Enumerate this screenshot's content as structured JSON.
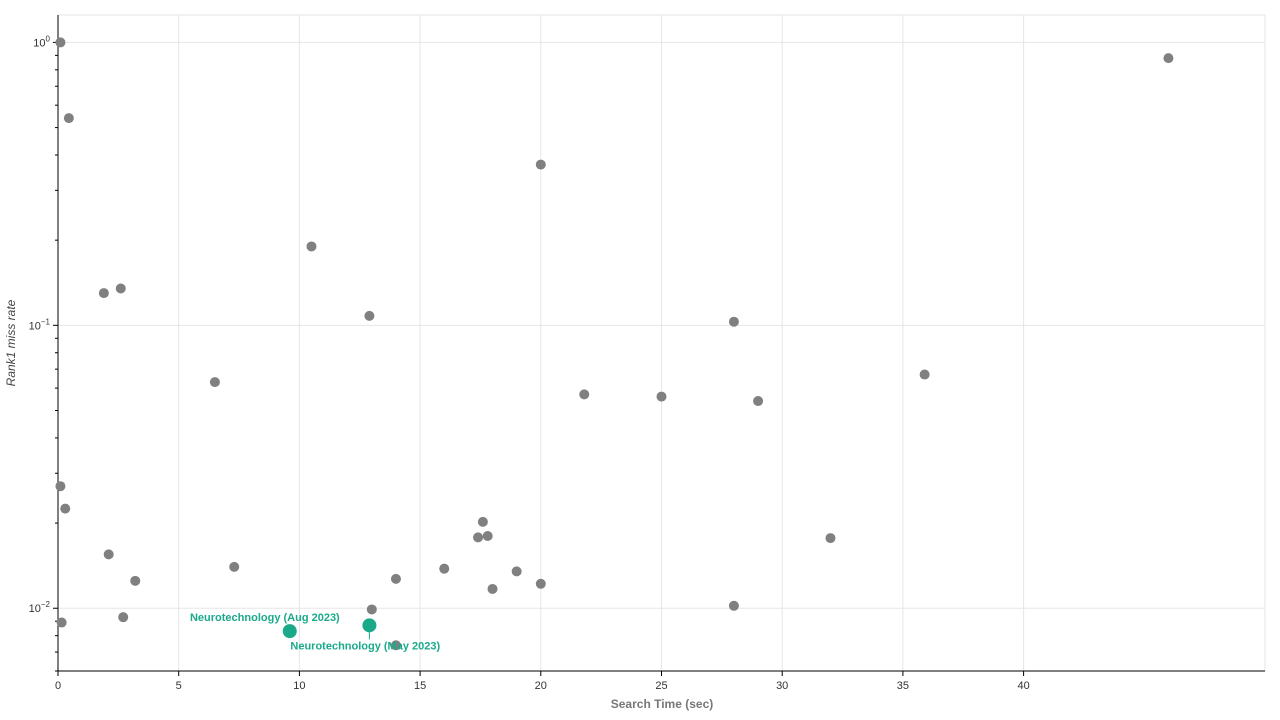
{
  "chart_data": {
    "type": "scatter",
    "title": "",
    "xlabel": "Search Time (sec)",
    "ylabel": "Rank1 miss rate",
    "x_scale": "linear",
    "y_scale": "log",
    "xlim": [
      0,
      50
    ],
    "ylim": [
      0.006,
      1.25
    ],
    "x_ticks": [
      0,
      5,
      10,
      15,
      20,
      25,
      30,
      35,
      40
    ],
    "x_tick_labels": [
      "0",
      "5",
      "10",
      "15",
      "20",
      "25",
      "30",
      "35",
      "40"
    ],
    "y_ticks": [
      0.01,
      0.1,
      1
    ],
    "y_tick_labels": [
      {
        "base": "10",
        "exp": "−2"
      },
      {
        "base": "10",
        "exp": "−1"
      },
      {
        "base": "10",
        "exp": "0"
      }
    ],
    "grid": true,
    "colors": {
      "default": "#808080",
      "highlight": "#1aaa8a",
      "grid": "#e6e6e6",
      "axis": "#000000"
    },
    "points": [
      {
        "x": 0.1,
        "y": 1.0
      },
      {
        "x": 0.45,
        "y": 0.54
      },
      {
        "x": 46.0,
        "y": 0.88
      },
      {
        "x": 20.0,
        "y": 0.37
      },
      {
        "x": 10.5,
        "y": 0.19
      },
      {
        "x": 1.9,
        "y": 0.13
      },
      {
        "x": 2.6,
        "y": 0.135
      },
      {
        "x": 12.9,
        "y": 0.108
      },
      {
        "x": 28.0,
        "y": 0.103
      },
      {
        "x": 6.5,
        "y": 0.063
      },
      {
        "x": 35.9,
        "y": 0.067
      },
      {
        "x": 21.8,
        "y": 0.057
      },
      {
        "x": 25.0,
        "y": 0.056
      },
      {
        "x": 29.0,
        "y": 0.054
      },
      {
        "x": 0.1,
        "y": 0.027
      },
      {
        "x": 0.3,
        "y": 0.0225
      },
      {
        "x": 17.6,
        "y": 0.0202
      },
      {
        "x": 17.4,
        "y": 0.0178
      },
      {
        "x": 17.8,
        "y": 0.018
      },
      {
        "x": 32.0,
        "y": 0.0177
      },
      {
        "x": 2.1,
        "y": 0.0155
      },
      {
        "x": 7.3,
        "y": 0.014
      },
      {
        "x": 16.0,
        "y": 0.0138
      },
      {
        "x": 19.0,
        "y": 0.0135
      },
      {
        "x": 3.2,
        "y": 0.0125
      },
      {
        "x": 14.0,
        "y": 0.0127
      },
      {
        "x": 20.0,
        "y": 0.0122
      },
      {
        "x": 18.0,
        "y": 0.0117
      },
      {
        "x": 13.0,
        "y": 0.0099
      },
      {
        "x": 28.0,
        "y": 0.0102
      },
      {
        "x": 2.7,
        "y": 0.0093
      },
      {
        "x": 0.15,
        "y": 0.0089
      },
      {
        "x": 14.0,
        "y": 0.0074
      }
    ],
    "highlighted": [
      {
        "name": "Neurotechnology  (Aug 2023)",
        "x": 9.6,
        "y": 0.0083,
        "label_position": "above-left"
      },
      {
        "name": "Neurotechnology  (May 2023)",
        "x": 12.9,
        "y": 0.0087,
        "label_position": "below-right"
      }
    ]
  }
}
